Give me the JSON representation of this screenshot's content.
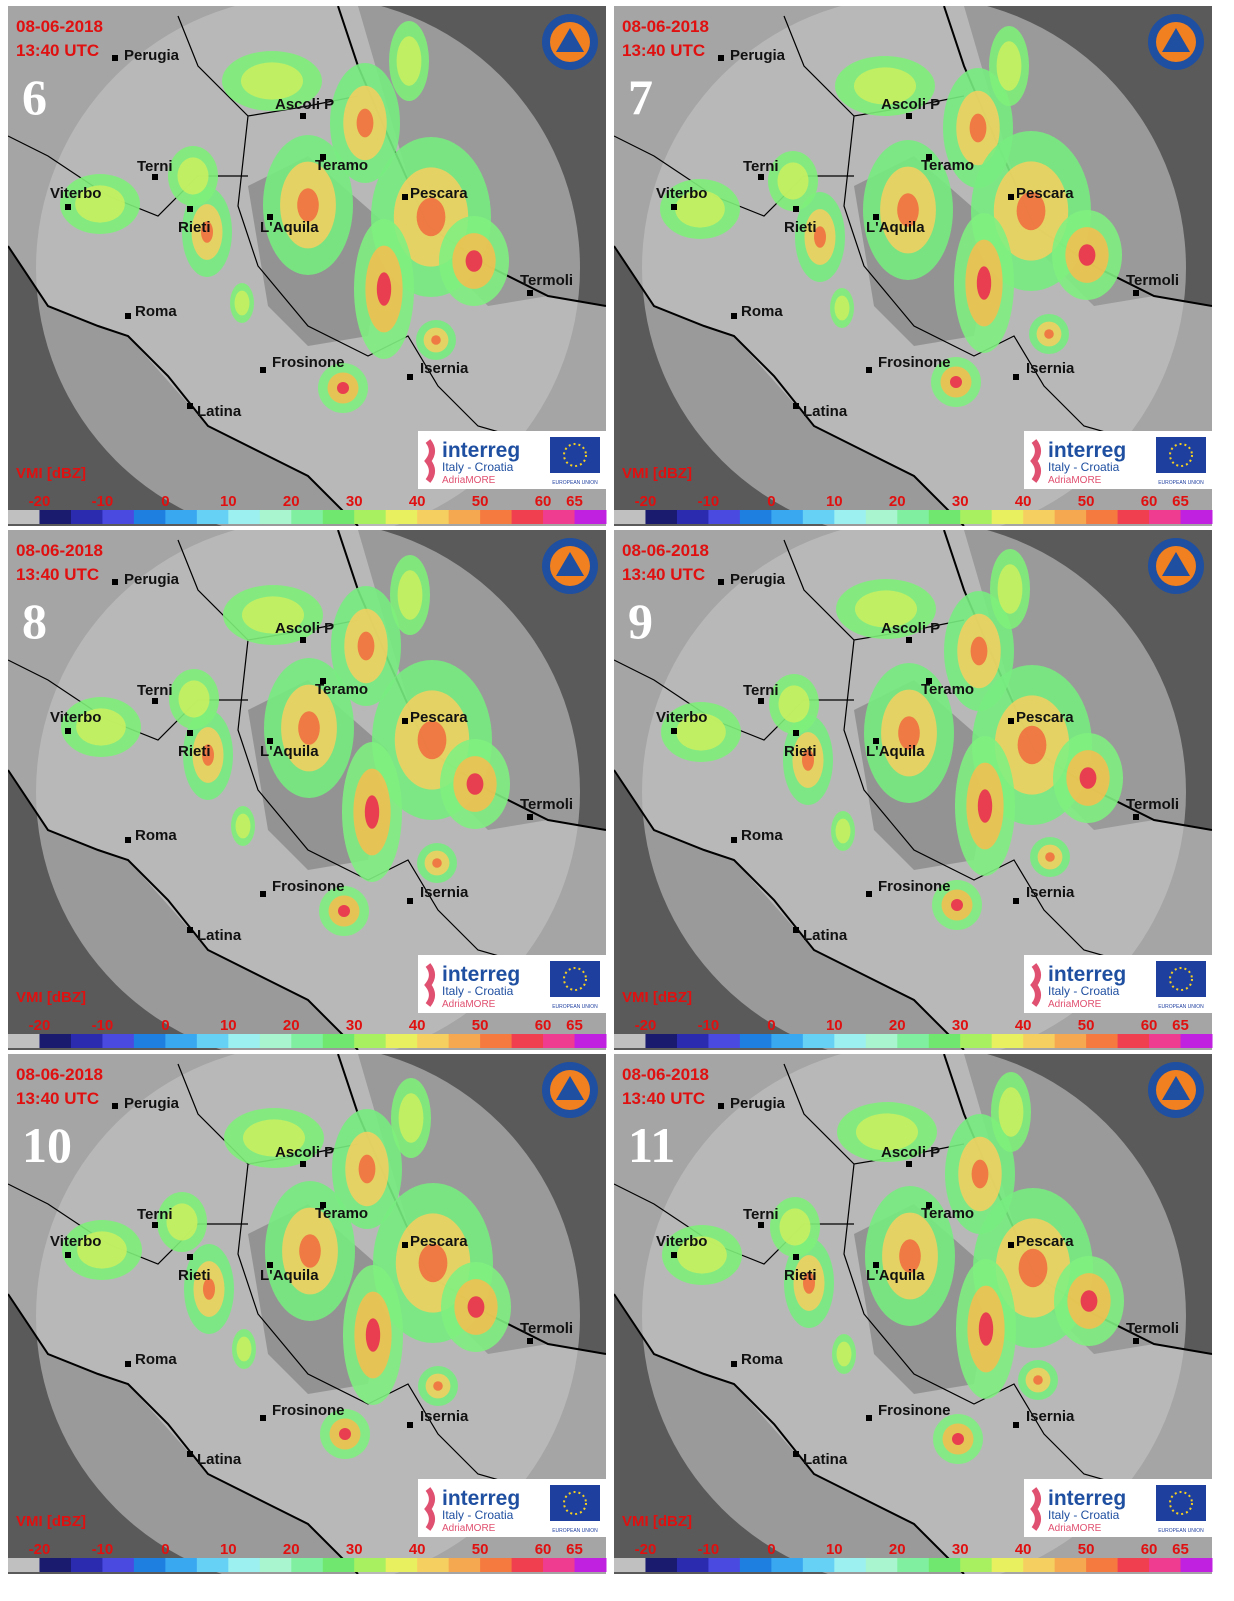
{
  "panels": [
    {
      "number": "6"
    },
    {
      "number": "7"
    },
    {
      "number": "8"
    },
    {
      "number": "9"
    },
    {
      "number": "10"
    },
    {
      "number": "11"
    }
  ],
  "common": {
    "date": "08-06-2018",
    "time": "13:40 UTC",
    "cities": [
      "Perugia",
      "Ascoli P",
      "Terni",
      "Teramo",
      "Viterbo",
      "Pescara",
      "Rieti",
      "L'Aquila",
      "Termoli",
      "Roma",
      "Frosinone",
      "Isernia",
      "Latina"
    ],
    "logo": {
      "brand": "interreg",
      "program": "Italy - Croatia",
      "project": "AdriaMORE",
      "eu": "EUROPEAN UNION"
    }
  },
  "colorbar": {
    "title": "VMI [dBZ]",
    "lim": [
      -25,
      70
    ],
    "ticks": [
      -20,
      -10,
      0,
      10,
      20,
      30,
      40,
      50,
      60,
      65
    ],
    "colors": [
      "#c0c0c0",
      "#1a1a6e",
      "#2b2bb0",
      "#4a4ae0",
      "#1f7fe0",
      "#3aa8f0",
      "#66d0f5",
      "#9cf0f0",
      "#a8f5d0",
      "#80f0a0",
      "#70e870",
      "#a8f060",
      "#e8f060",
      "#f5d060",
      "#f5a850",
      "#f57a40",
      "#f04050",
      "#f03c90",
      "#c020e0"
    ]
  }
}
